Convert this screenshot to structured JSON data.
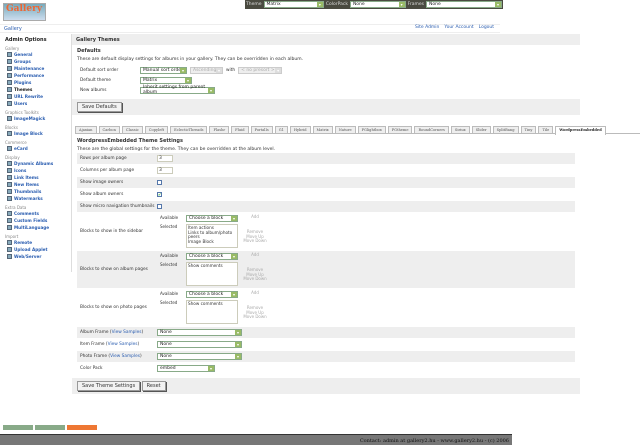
{
  "topbar": {
    "theme_label": "Theme",
    "theme_value": "Matrix",
    "colorpack_label": "ColorPack",
    "colorpack_value": "None",
    "frames_label": "Frames",
    "frames_value": "None"
  },
  "logo": "Gallery",
  "breadcrumb": "Gallery",
  "toplinks": [
    "Site Admin",
    "Your Account",
    "Logout"
  ],
  "sidebar": {
    "title": "Admin Options",
    "groups": [
      {
        "name": "Gallery",
        "items": [
          "General",
          "Groups",
          "Maintenance",
          "Performance",
          "Plugins",
          "Themes",
          "URL Rewrite",
          "Users"
        ]
      },
      {
        "name": "Graphics Toolkits",
        "items": [
          "ImageMagick"
        ]
      },
      {
        "name": "Blocks",
        "items": [
          "Image Block"
        ]
      },
      {
        "name": "Commerce",
        "items": [
          "eCard"
        ]
      },
      {
        "name": "Display",
        "items": [
          "Dynamic Albums",
          "Icons",
          "Link Items",
          "New Items",
          "Thumbnails",
          "Watermarks"
        ]
      },
      {
        "name": "Extra Data",
        "items": [
          "Comments",
          "Custom Fields",
          "MultiLanguage"
        ]
      },
      {
        "name": "Import",
        "items": [
          "Remote",
          "Upload Applet",
          "Web/Server"
        ]
      }
    ],
    "current": "Themes"
  },
  "main": {
    "title": "Gallery Themes",
    "defaults_title": "Defaults",
    "defaults_desc": "These are default display settings for albums in your gallery. They can be overridden in each album.",
    "sort_label": "Default sort order",
    "sort_value": "Manual sort order",
    "sort_dir": "Ascending",
    "with_label": "with",
    "sort_with": "< no presort >",
    "theme_label": "Default theme",
    "theme_value": "Matrix",
    "new_albums_label": "New albums",
    "new_albums_value": "Inherit settings from parent album",
    "save_defaults": "Save Defaults"
  },
  "tabs": [
    "Ajaxian",
    "Carbon",
    "Classic",
    "Copyleft",
    "EclecticThreads",
    "Flashr",
    "Fluid",
    "PortalIs",
    "G1",
    "Hybrid",
    "Matrix",
    "Nature",
    "PGlightbox",
    "PGtheme",
    "RoundCorners",
    "Siriux",
    "Slider",
    "SplitBang",
    "Tiny",
    "Tile",
    "WordpressEmbedded"
  ],
  "active_tab": "WordpressEmbedded",
  "settings": {
    "title": "WordpressEmbedded Theme Settings",
    "desc": "These are the global settings for the theme. They can be overridden at the album level.",
    "rows_label": "Rows per album page",
    "rows_value": "3",
    "cols_label": "Columns per album page",
    "cols_value": "3",
    "show_image_owners": "Show image owners",
    "show_album_owners": "Show album owners",
    "show_micro": "Show micro navigation thumbnails",
    "image_owners_checked": false,
    "album_owners_checked": true,
    "micro_checked": false,
    "available": "Available",
    "selected": "Selected",
    "choose": "Choose a block",
    "add": "Add",
    "remove": "Remove",
    "up": "Move Up",
    "down": "Move Down",
    "sidebar_label": "Blocks to show in the sidebar",
    "sidebar_blocks": [
      "Item actions",
      "Links to album/photo peers",
      "Image Block"
    ],
    "album_label": "Blocks to show on album pages",
    "album_blocks": [
      "Show comments"
    ],
    "photo_label": "Blocks to show on photo pages",
    "photo_blocks": [
      "Show comments"
    ],
    "view_samples": "View Samples",
    "album_frame": "Album Frame",
    "item_frame": "Item Frame",
    "photo_frame": "Photo Frame",
    "frame_value": "None",
    "colorpack_label": "Color Pack",
    "colorpack_value": "embed",
    "save": "Save Theme Settings",
    "reset": "Reset"
  },
  "footer": "Contact: admin at gallery2.hu - www.gallery2.hu - (c) 2006"
}
